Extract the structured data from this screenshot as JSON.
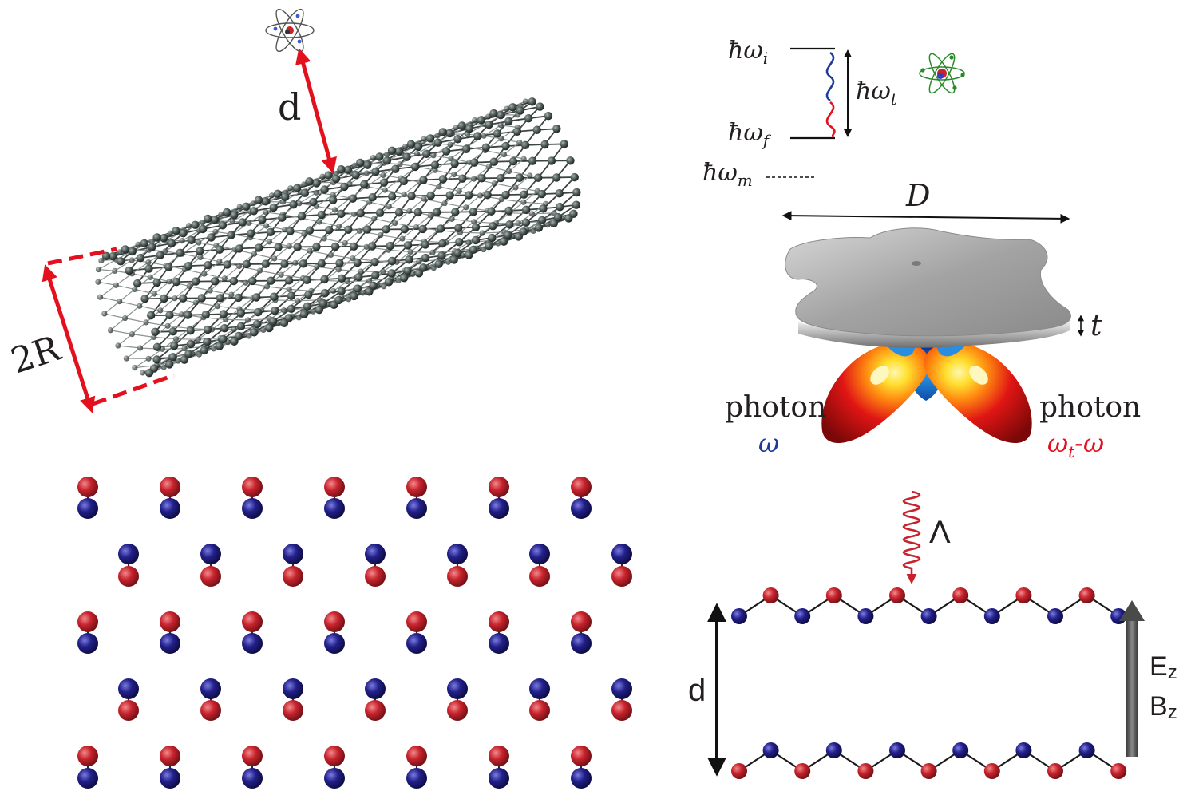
{
  "panel_nanotube": {
    "distance_label": "d",
    "diameter_label": "2R"
  },
  "panel_levels": {
    "initial": {
      "base": "ħω",
      "sub": "i"
    },
    "final": {
      "base": "ħω",
      "sub": "f"
    },
    "transition": {
      "base": "ħω",
      "sub": "t"
    },
    "intermediate": {
      "base": "ħω",
      "sub": "m"
    }
  },
  "panel_flake": {
    "diameter_label": "D",
    "thickness_label": "t",
    "photon_left_label": "photon",
    "photon_left_freq": "ω",
    "photon_right_label": "photon",
    "photon_right_freq": {
      "a": "ω",
      "sub": "t",
      "b": "-ω"
    }
  },
  "panel_bilayer": {
    "wave_label": "Λ",
    "separation_label": "d",
    "field_e_label": "E",
    "field_e_sub": "z",
    "field_b_label": "B",
    "field_b_sub": "z"
  },
  "colors": {
    "arrow_red": "#e3101e",
    "atom_red": "#c8232c",
    "atom_blue": "#22208a",
    "nanotube_atom": "#4a5553",
    "wave_blue": "#1e3a9a",
    "flake_gray": "#a8a8a8"
  },
  "icons": [
    "atom-icon"
  ]
}
